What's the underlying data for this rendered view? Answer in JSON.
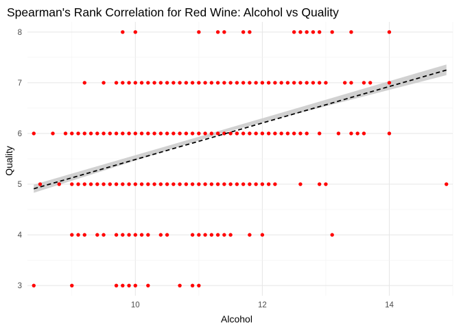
{
  "chart_data": {
    "type": "scatter",
    "title": "Spearman's Rank Correlation for Red Wine: Alcohol vs Quality",
    "xlabel": "Alcohol",
    "ylabel": "Quality",
    "xlim": [
      8.3,
      15.0
    ],
    "ylim": [
      2.8,
      8.2
    ],
    "x_ticks": [
      10,
      12,
      14
    ],
    "x_tick_labels": [
      "10",
      "12",
      "14"
    ],
    "y_ticks": [
      3,
      4,
      5,
      6,
      7,
      8
    ],
    "y_tick_labels": [
      "3",
      "4",
      "5",
      "6",
      "7",
      "8"
    ],
    "grid": true,
    "point_color": "#ff0000",
    "trend_color": "#000000",
    "band_color": "#cccccc",
    "points": [
      {
        "quality": 8,
        "alcohol": [
          9.8,
          10.0,
          11.0,
          11.3,
          11.4,
          11.7,
          11.8,
          12.5,
          12.6,
          12.7,
          12.8,
          12.9,
          13.1,
          13.4,
          14.0
        ]
      },
      {
        "quality": 7,
        "alcohol": [
          9.2,
          9.5,
          9.7,
          9.8,
          9.9,
          10.0,
          10.1,
          10.2,
          10.3,
          10.4,
          10.5,
          10.6,
          10.7,
          10.8,
          10.9,
          11.0,
          11.1,
          11.2,
          11.3,
          11.4,
          11.5,
          11.6,
          11.7,
          11.8,
          11.9,
          12.0,
          12.1,
          12.2,
          12.3,
          12.4,
          12.5,
          12.6,
          12.7,
          12.8,
          12.9,
          13.0,
          13.3,
          13.4,
          13.6,
          13.7,
          14.0
        ]
      },
      {
        "quality": 6,
        "alcohol": [
          8.4,
          8.7,
          8.9,
          9.0,
          9.1,
          9.2,
          9.3,
          9.4,
          9.5,
          9.6,
          9.7,
          9.8,
          9.9,
          10.0,
          10.1,
          10.2,
          10.3,
          10.4,
          10.5,
          10.6,
          10.7,
          10.8,
          10.9,
          11.0,
          11.1,
          11.2,
          11.3,
          11.4,
          11.5,
          11.6,
          11.7,
          11.8,
          11.9,
          12.0,
          12.1,
          12.2,
          12.3,
          12.4,
          12.5,
          12.6,
          12.7,
          12.9,
          13.2,
          13.4,
          13.5,
          13.6,
          14.0
        ]
      },
      {
        "quality": 5,
        "alcohol": [
          8.5,
          8.8,
          9.0,
          9.1,
          9.2,
          9.3,
          9.4,
          9.5,
          9.6,
          9.7,
          9.8,
          9.9,
          10.0,
          10.1,
          10.2,
          10.3,
          10.4,
          10.5,
          10.6,
          10.7,
          10.8,
          10.9,
          11.0,
          11.1,
          11.2,
          11.3,
          11.4,
          11.5,
          11.6,
          11.7,
          11.8,
          11.9,
          12.0,
          12.1,
          12.2,
          12.6,
          12.9,
          13.0,
          14.9
        ]
      },
      {
        "quality": 4,
        "alcohol": [
          9.0,
          9.1,
          9.2,
          9.4,
          9.5,
          9.7,
          9.8,
          9.9,
          10.0,
          10.1,
          10.2,
          10.4,
          10.5,
          10.9,
          11.0,
          11.1,
          11.2,
          11.3,
          11.4,
          11.5,
          11.8,
          12.0,
          13.1
        ]
      },
      {
        "quality": 3,
        "alcohol": [
          8.4,
          9.0,
          9.7,
          9.8,
          9.9,
          10.0,
          10.2,
          10.7,
          10.9,
          11.0
        ]
      }
    ],
    "trend": {
      "x": [
        8.4,
        14.9
      ],
      "y": [
        4.91,
        7.25
      ]
    },
    "band": {
      "x": [
        8.4,
        11.4,
        14.9
      ],
      "lower": [
        4.83,
        6.02,
        7.15
      ],
      "upper": [
        4.99,
        6.08,
        7.36
      ]
    }
  }
}
